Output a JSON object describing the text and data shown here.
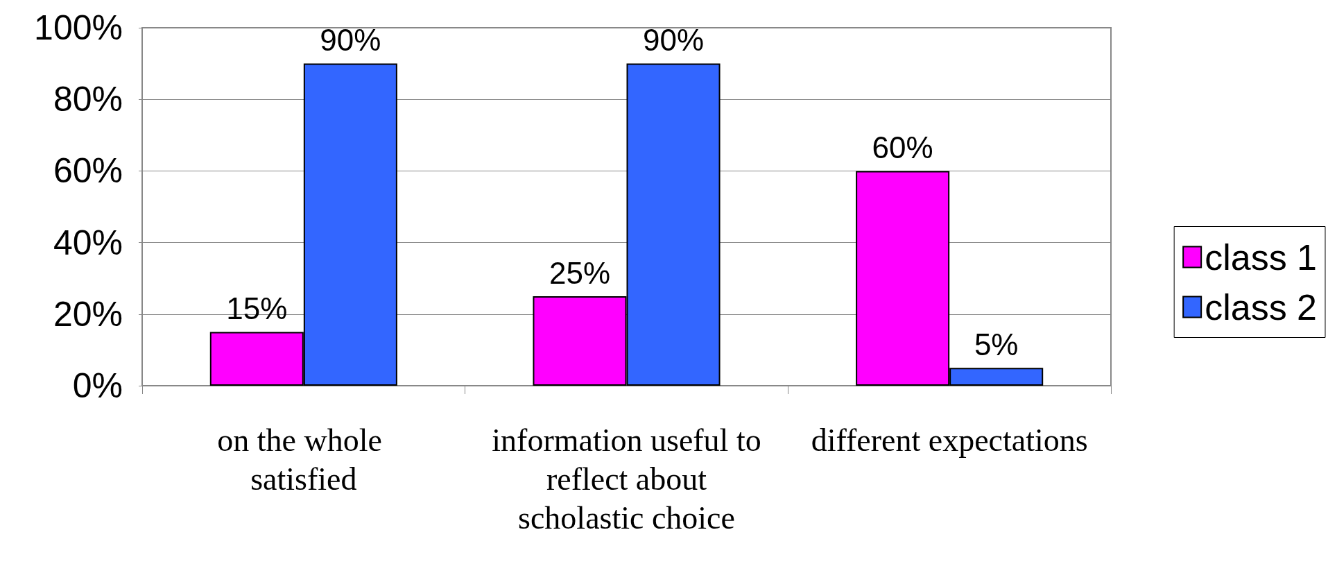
{
  "chart_data": {
    "type": "bar",
    "categories": [
      "on the whole satisfied",
      "information useful to reflect about scholastic choice",
      "different expectations"
    ],
    "series": [
      {
        "name": "class 1",
        "color": "#ff00ff",
        "values": [
          15,
          25,
          60
        ],
        "value_labels": [
          "15%",
          "25%",
          "60%"
        ]
      },
      {
        "name": "class 2",
        "color": "#3366ff",
        "values": [
          90,
          90,
          5
        ],
        "value_labels": [
          "90%",
          "90%",
          "5%"
        ]
      }
    ],
    "ylim": [
      0,
      100
    ],
    "yticks": [
      {
        "value": 0,
        "label": "0%"
      },
      {
        "value": 20,
        "label": "20%"
      },
      {
        "value": 40,
        "label": "40%"
      },
      {
        "value": 60,
        "label": "60%"
      },
      {
        "value": 80,
        "label": "80%"
      },
      {
        "value": 100,
        "label": "100%"
      }
    ],
    "grid": "y",
    "legend": "right"
  }
}
